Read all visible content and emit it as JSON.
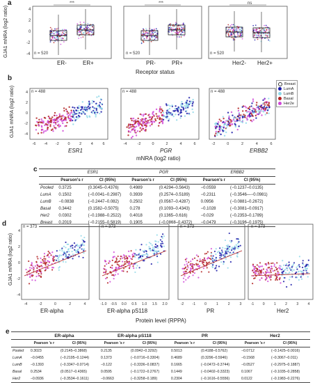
{
  "panel_a": {
    "letter": "a",
    "ylabel": "GJA1 mNRA (log2 ratio)",
    "xlabel": "Receptor status",
    "y_ticks": [
      "4",
      "2",
      "0",
      "-2",
      "-4"
    ],
    "groups": [
      {
        "labels": [
          "ER-",
          "ER+"
        ],
        "n": "n = 520",
        "sig": "***"
      },
      {
        "labels": [
          "PR-",
          "PR+"
        ],
        "n": "n = 520",
        "sig": "***"
      },
      {
        "labels": [
          "Her2-",
          "Her2+"
        ],
        "n": "n = 520",
        "sig": "ns"
      }
    ]
  },
  "panel_b": {
    "letter": "b",
    "xlabel": "mNRA (log2 ratio)",
    "y_ticks": [
      "4",
      "2",
      "0",
      "-2",
      "-4"
    ],
    "plots": [
      {
        "gene": "ESR1",
        "n": "n = 488",
        "x_ticks": [
          "-6",
          "-4",
          "-2",
          "0",
          "2",
          "4",
          "6"
        ]
      },
      {
        "gene": "PGR",
        "n": "n = 488",
        "x_ticks": [
          "-4",
          "-2",
          "0",
          "2",
          "4",
          "6"
        ]
      },
      {
        "gene": "ERBB2",
        "n": "n = 488",
        "x_ticks": [
          "-2",
          "0",
          "2",
          "4",
          "6"
        ]
      }
    ],
    "legend": [
      {
        "label": "Breast",
        "color": "#ffffff"
      },
      {
        "label": "LumA",
        "color": "#1a1aa8"
      },
      {
        "label": "LumB",
        "color": "#8fd8e8"
      },
      {
        "label": "Basal",
        "color": "#b22222"
      },
      {
        "label": "Her2e",
        "color": "#d048d8"
      }
    ]
  },
  "panel_c": {
    "letter": "c",
    "genes": [
      "ESR1",
      "PGR",
      "ERBB2"
    ],
    "col_r": "Pearson's r",
    "col_ci": "CI (95%)",
    "rows": [
      {
        "label": "Pooled",
        "vals": [
          "0.3725",
          "(0.3045–0.4376)",
          "0.4989",
          "(0.4294–0.5643)",
          "−0.0559",
          "(−0.1237–0.0135)"
        ]
      },
      {
        "label": "LumA",
        "vals": [
          "0.1502",
          "(−0.0041–0.2987)",
          "0.3939",
          "(0.2574–0.5189)",
          "−0.2311",
          "(−0.3546—−0.0981)"
        ]
      },
      {
        "label": "LumB",
        "vals": [
          "−0.0838",
          "(−0.2447–0.082)",
          "0.2502",
          "(0.0567–0.4287)",
          "0.0956",
          "(−0.0881–0.2672)"
        ]
      },
      {
        "label": "Basal",
        "vals": [
          "0.3442",
          "(0.1582–0.5075)",
          "0.278",
          "(0.1093–0.4343)",
          "−0.1028",
          "(−0.3081–0.0917)"
        ]
      },
      {
        "label": "Her2",
        "vals": [
          "0.0302",
          "(−0.1988–0.2522)",
          "0.4018",
          "(0.1365–0.616)",
          "−0.029",
          "(−0.2353–0.1789)"
        ]
      },
      {
        "label": "Breast",
        "vals": [
          "0.2019",
          "(−0.2155–0.5819)",
          "0.1905",
          "(−0.0868–0.4372)",
          "−0.0479",
          "(−0.3196–0.1975)"
        ]
      }
    ]
  },
  "panel_d": {
    "letter": "d",
    "ylabel": "GJA1 mNRA (log2 ratio)",
    "xlabel": "Protein level (RPPA)",
    "y_ticks": [
      "4",
      "2",
      "0",
      "-2",
      "-4"
    ],
    "plots": [
      {
        "name": "ER-alpha",
        "n": "n = 373",
        "x_ticks": [
          "-4",
          "-2",
          "0",
          "2",
          "4"
        ]
      },
      {
        "name": "ER-alpha pS118",
        "n": "n = 373",
        "x_ticks": [
          "-1.0",
          "-0.5",
          "0.0",
          "0.5",
          "1.0",
          "1.5",
          "2.0"
        ]
      },
      {
        "name": "PR",
        "n": "n = 373",
        "x_ticks": [
          "-2",
          "-1",
          "0",
          "1",
          "2",
          "3"
        ]
      },
      {
        "name": "Her2",
        "n": "n = 373",
        "x_ticks": [
          "-1",
          "0",
          "1",
          "2",
          "3",
          "4"
        ]
      }
    ]
  },
  "panel_e": {
    "letter": "e",
    "proteins": [
      "ER-alpha",
      "ER-alpha pS118",
      "PR",
      "Her2"
    ],
    "col_r": "Pearson 's r",
    "col_ci": "CI (95%)",
    "rows": [
      {
        "label": "Pooled",
        "vals": [
          "0.3023",
          "(0.2145–0.3868)",
          "0.2135",
          "(0.0942–0.3292)",
          "0.5013",
          "(0.4188–0.5762)",
          "−0.0712",
          "(−0.1425–0.0016)"
        ]
      },
      {
        "label": "LumA",
        "vals": [
          "−0.0455",
          "(−0.2195–0.1244)",
          "0.1373",
          "(−0.0716–0.3304)",
          "0.4689",
          "(0.3296–0.5946)",
          "−0.1568",
          "(−0.3067–0.011)"
        ]
      },
      {
        "label": "LumB",
        "vals": [
          "−0.1393",
          "(−0.3347–0.0714)",
          "−0.122",
          "(−0.3336–0.0837)",
          "0.1665",
          "(−0.0472–0.3744)",
          "−0.0527",
          "(−0.2975–0.1887)"
        ]
      },
      {
        "label": "Basal",
        "vals": [
          "0.2534",
          "(0.0517–0.4365)",
          "0.0595",
          "(−0.1722–0.2767)",
          "0.1449",
          "(−0.0402–0.3323)",
          "0.1067",
          "(−0.1035–0.2858)"
        ]
      },
      {
        "label": "Her2",
        "vals": [
          "−0.0936",
          "(−0.3534–0.1611)",
          "−0.0663",
          "(−0.3258–0.189)",
          "0.2304",
          "(−0.1616–0.5556)",
          "0.0122",
          "(−0.1983–0.2276)"
        ]
      }
    ]
  }
}
